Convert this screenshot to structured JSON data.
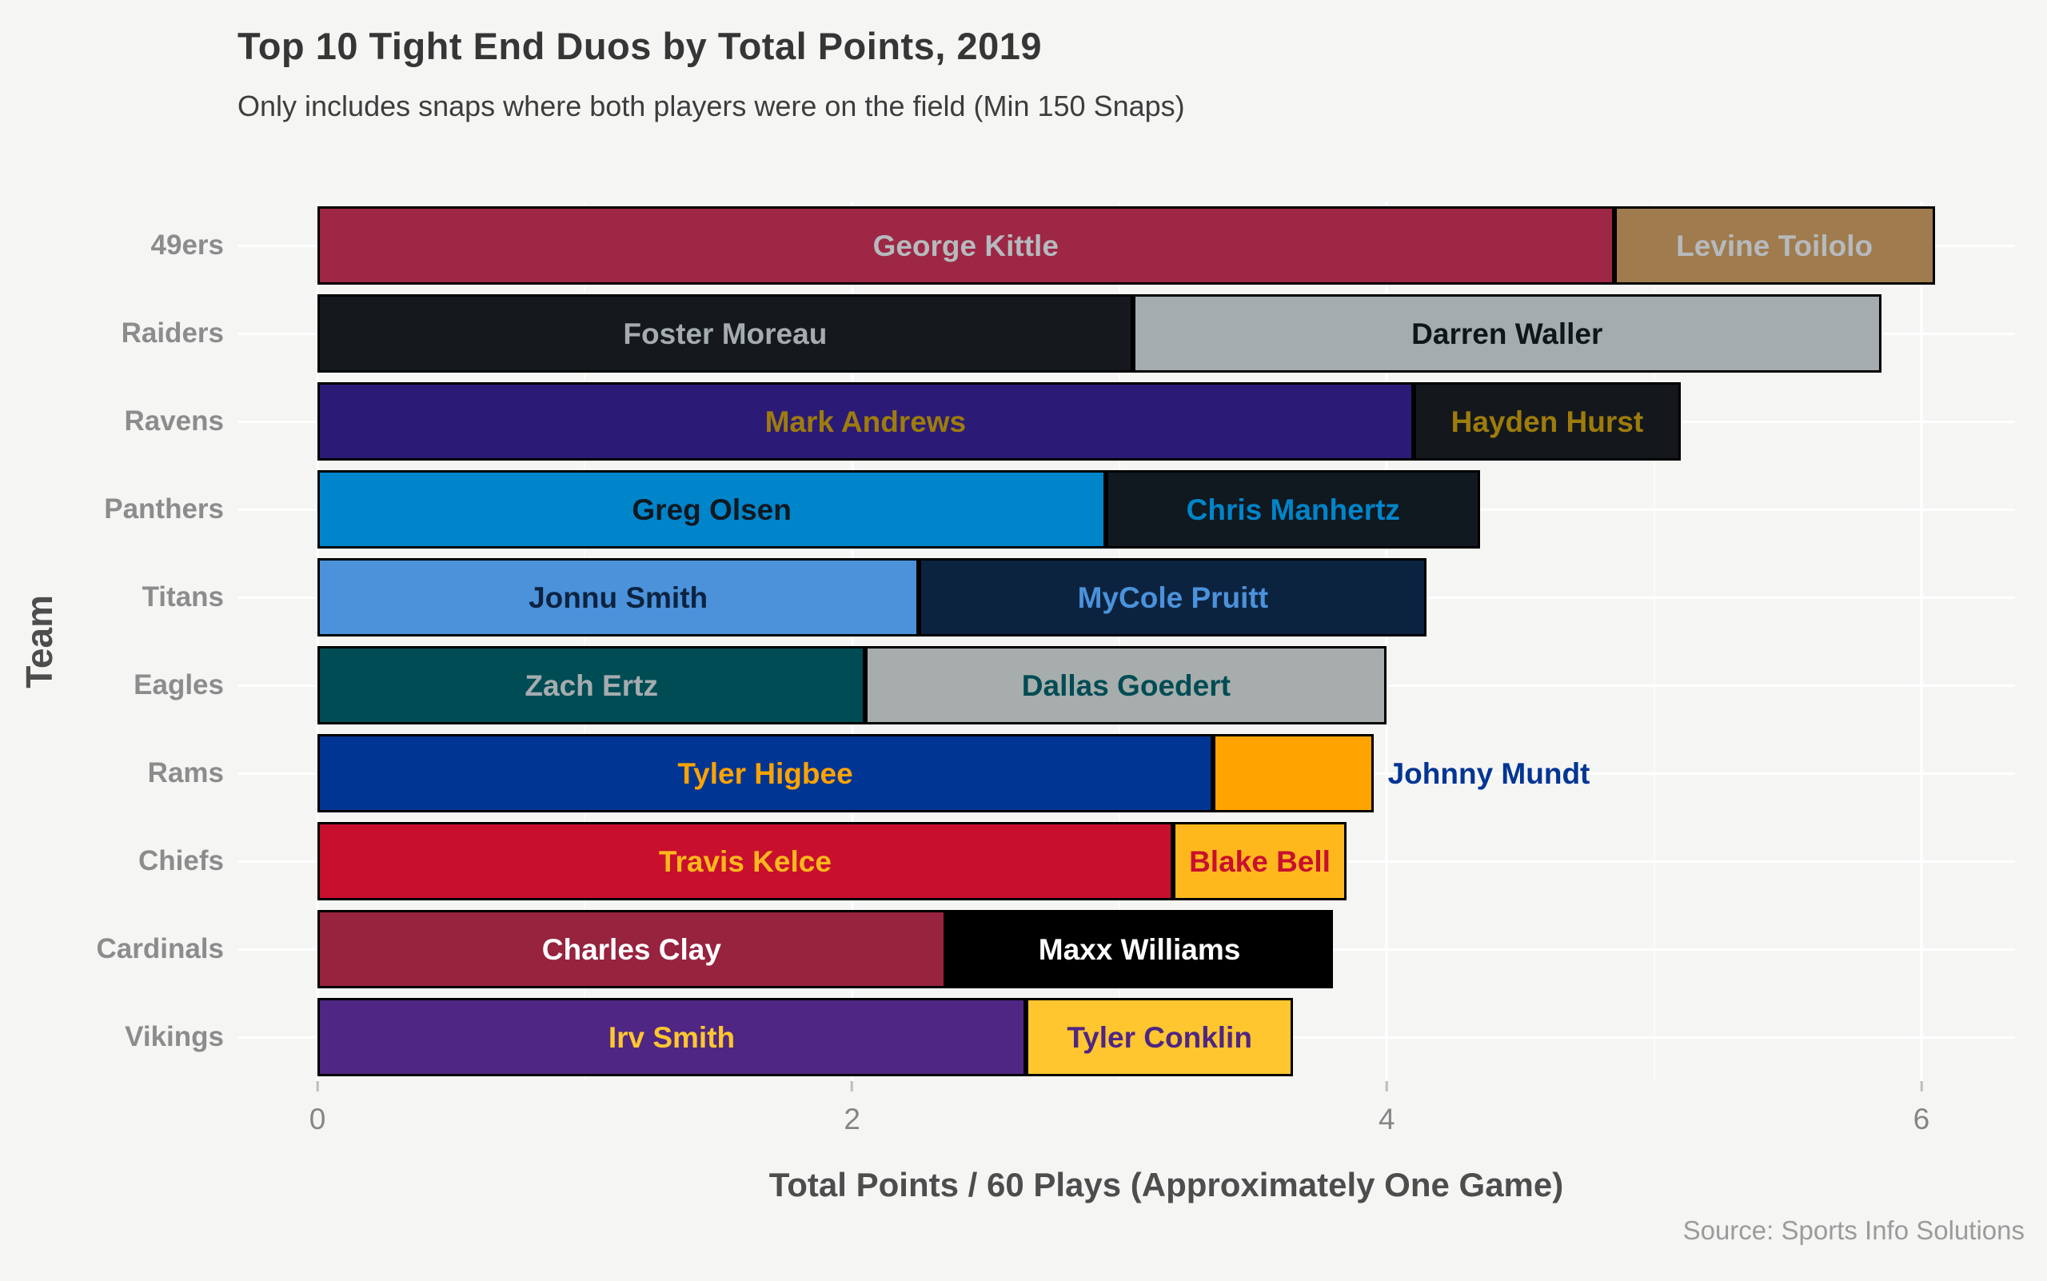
{
  "title": "Top 10 Tight End Duos by Total Points, 2019",
  "subtitle": "Only includes snaps where both players were on the field (Min 150 Snaps)",
  "source": "Source: Sports Info Solutions",
  "colors": {
    "background": "#F5F5F4",
    "gridline": "#FFFFFF",
    "bar_border": "#000000",
    "team_label_text": "#8C8C8C",
    "tick_label_text": "#858585",
    "title_text": "#363636",
    "axis_title_text": "#4D4D4D",
    "source_text": "#9B9B9B"
  },
  "chart_data": {
    "type": "bar",
    "orientation": "horizontal",
    "stacked": true,
    "grid": "on",
    "title": "Top 10 Tight End Duos by Total Points, 2019",
    "subtitle": "Only includes snaps where both players were on the field (Min 150 Snaps)",
    "xlabel": "Total Points / 60 Plays (Approximately One Game)",
    "ylabel": "Team",
    "xlim": [
      0,
      6.35
    ],
    "xticks": [
      0,
      2,
      4,
      6
    ],
    "minor_xticks": [
      1,
      3,
      5
    ],
    "categories": [
      "49ers",
      "Raiders",
      "Ravens",
      "Panthers",
      "Titans",
      "Eagles",
      "Rams",
      "Chiefs",
      "Cardinals",
      "Vikings"
    ],
    "rows": [
      {
        "team": "49ers",
        "total": 6.05,
        "segments": [
          {
            "player": "George Kittle",
            "value": 4.85,
            "fill": "#9D2745",
            "text_color": "#B6BABD",
            "label_position": "inside"
          },
          {
            "player": "Levine Toilolo",
            "value": 1.2,
            "fill": "#9F7B4E",
            "text_color": "#B6BABD",
            "label_position": "inside"
          }
        ]
      },
      {
        "team": "Raiders",
        "total": 5.85,
        "segments": [
          {
            "player": "Foster Moreau",
            "value": 3.05,
            "fill": "#15191E",
            "text_color": "#A5ACAF",
            "label_position": "inside"
          },
          {
            "player": "Darren Waller",
            "value": 2.8,
            "fill": "#A5ACAF",
            "text_color": "#101518",
            "label_position": "inside"
          }
        ]
      },
      {
        "team": "Ravens",
        "total": 5.1,
        "segments": [
          {
            "player": "Mark Andrews",
            "value": 4.1,
            "fill": "#2B1B76",
            "text_color": "#9E7C0C",
            "label_position": "inside"
          },
          {
            "player": "Hayden Hurst",
            "value": 1.0,
            "fill": "#14181C",
            "text_color": "#9E7C0C",
            "label_position": "inside"
          }
        ]
      },
      {
        "team": "Panthers",
        "total": 4.35,
        "segments": [
          {
            "player": "Greg Olsen",
            "value": 2.95,
            "fill": "#0085CA",
            "text_color": "#101820",
            "label_position": "inside"
          },
          {
            "player": "Chris Manhertz",
            "value": 1.4,
            "fill": "#101820",
            "text_color": "#0085CA",
            "label_position": "inside"
          }
        ]
      },
      {
        "team": "Titans",
        "total": 4.15,
        "segments": [
          {
            "player": "Jonnu Smith",
            "value": 2.25,
            "fill": "#4B92DB",
            "text_color": "#0C2340",
            "label_position": "inside"
          },
          {
            "player": "MyCole Pruitt",
            "value": 1.9,
            "fill": "#0C2340",
            "text_color": "#4B92DB",
            "label_position": "inside"
          }
        ]
      },
      {
        "team": "Eagles",
        "total": 4.0,
        "segments": [
          {
            "player": "Zach Ertz",
            "value": 2.05,
            "fill": "#004C54",
            "text_color": "#A5ACAF",
            "label_position": "inside"
          },
          {
            "player": "Dallas Goedert",
            "value": 1.95,
            "fill": "#A7ADAC",
            "text_color": "#004C54",
            "label_position": "inside"
          }
        ]
      },
      {
        "team": "Rams",
        "total": 3.95,
        "segments": [
          {
            "player": "Tyler Higbee",
            "value": 3.35,
            "fill": "#003594",
            "text_color": "#FFA300",
            "label_position": "inside"
          },
          {
            "player": "Johnny Mundt",
            "value": 0.6,
            "fill": "#FFA300",
            "text_color": "#003594",
            "label_position": "outside"
          }
        ]
      },
      {
        "team": "Chiefs",
        "total": 3.85,
        "segments": [
          {
            "player": "Travis Kelce",
            "value": 3.2,
            "fill": "#C8102E",
            "text_color": "#FFB81C",
            "label_position": "inside"
          },
          {
            "player": "Blake Bell",
            "value": 0.65,
            "fill": "#FFB81C",
            "text_color": "#C8102E",
            "label_position": "inside"
          }
        ]
      },
      {
        "team": "Cardinals",
        "total": 3.8,
        "segments": [
          {
            "player": "Charles Clay",
            "value": 2.35,
            "fill": "#97233F",
            "text_color": "#FFFFFF",
            "label_position": "inside"
          },
          {
            "player": "Maxx Williams",
            "value": 1.45,
            "fill": "#000000",
            "text_color": "#FFFFFF",
            "label_position": "inside"
          }
        ]
      },
      {
        "team": "Vikings",
        "total": 3.65,
        "segments": [
          {
            "player": "Irv Smith",
            "value": 2.65,
            "fill": "#4F2683",
            "text_color": "#FFC62F",
            "label_position": "inside"
          },
          {
            "player": "Tyler Conklin",
            "value": 1.0,
            "fill": "#FFC62F",
            "text_color": "#4F2683",
            "label_position": "inside"
          }
        ]
      }
    ],
    "legend": "none",
    "source": "Source: Sports Info Solutions"
  }
}
